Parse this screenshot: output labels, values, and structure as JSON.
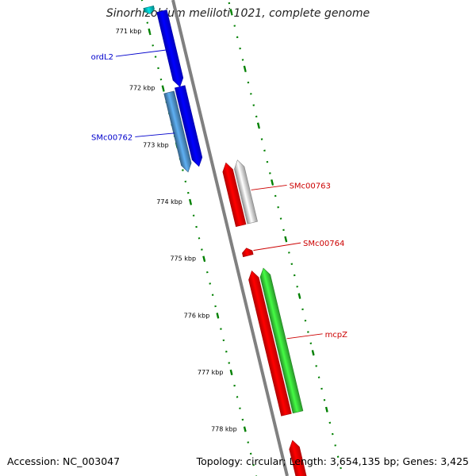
{
  "title": "Sinorhizobium meliloti 1021, complete genome",
  "footer": {
    "accession": "Accession: NC_003047",
    "summary": "Topology: circular; Length: 3,654,135 bp; Genes: 3,425"
  },
  "colors": {
    "backbone": "#808080",
    "tick": "#008000",
    "forward_label": "#0000cc",
    "reverse_label": "#cc0000",
    "blue": "#0000ee",
    "steelblue": "#4682b4",
    "teal": "#00aaaa",
    "red": "#ee0000",
    "silver": "#c0c0c0",
    "green": "#33bb33"
  },
  "scale_labels": [
    "771 kbp",
    "772 kbp",
    "773 kbp",
    "774 kbp",
    "775 kbp",
    "776 kbp",
    "777 kbp",
    "778 kbp"
  ],
  "genes": [
    {
      "name": "",
      "strand": "forward",
      "color": "teal"
    },
    {
      "name": "ordL2",
      "strand": "forward",
      "color": "blue"
    },
    {
      "name": "",
      "strand": "forward",
      "color": "blue"
    },
    {
      "name": "SMc00762",
      "strand": "forward",
      "color": "steelblue"
    },
    {
      "name": "",
      "strand": "reverse",
      "color": "red"
    },
    {
      "name": "SMc00763",
      "strand": "reverse",
      "color": "silver"
    },
    {
      "name": "SMc00764",
      "strand": "reverse",
      "color": "red"
    },
    {
      "name": "",
      "strand": "reverse",
      "color": "red"
    },
    {
      "name": "mcpZ",
      "strand": "reverse",
      "color": "green"
    },
    {
      "name": "",
      "strand": "reverse",
      "color": "red"
    }
  ]
}
